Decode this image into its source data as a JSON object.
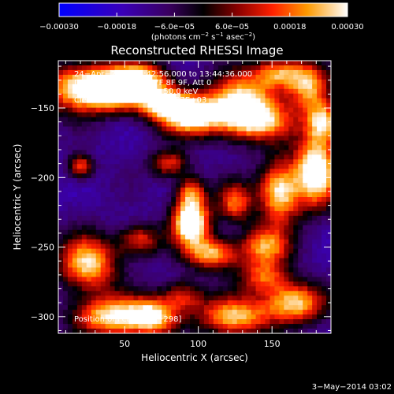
{
  "chart_data": {
    "type": "heatmap",
    "title": "Reconstructed RHESSI Image",
    "xlabel": "Heliocentric X (arcsec)",
    "ylabel": "Heliocentric Y (arcsec)",
    "xlim": [
      5,
      190
    ],
    "ylim": [
      -312,
      -116
    ],
    "x_ticks": [
      50,
      100,
      150
    ],
    "y_ticks": [
      -150,
      -200,
      -250,
      -300
    ],
    "x_tick_labels": [
      "50",
      "100",
      "150"
    ],
    "y_tick_labels": [
      "−150",
      "−200",
      "−250",
      "−300"
    ],
    "colorbar": {
      "min": -0.0003,
      "max": 0.0003,
      "colormap": "blue-purple-black-red-yellow-white",
      "ticks": [
        -0.0003,
        -0.00018,
        -6e-05,
        6e-05,
        0.00018,
        0.0003
      ],
      "tick_labels": [
        "−0.00030",
        "−0.00018",
        "−6.0e−05",
        "6.0e−05",
        "0.00018",
        "0.00030"
      ],
      "units_prefix": "(photons cm",
      "units_exp1": "−2",
      "units_mid1": " s",
      "units_exp2": "−1",
      "units_mid2": " asec",
      "units_exp3": "−2",
      "units_suffix": ")"
    },
    "annotations": {
      "time_range": "24−Apr−2012 13:42:56.000 to 13:44:36.000",
      "detectors": "Detectors: 3F 5F 6F 7F 8F 9F, Att 0",
      "energy_range": "Energy Range: 25.0 − 50.0 keV",
      "algorithm": "Clean",
      "total_counts": "Total counts: 1.57E+03",
      "position_of_peak": "Position of Peak: [61,−298]"
    },
    "peak_position": [
      61,
      -298
    ],
    "blobs": [
      {
        "x": 20,
        "y": -135,
        "sx": 18,
        "sy": 12,
        "a": 1.3
      },
      {
        "x": 45,
        "y": -138,
        "sx": 14,
        "sy": 10,
        "a": 1.2
      },
      {
        "x": 62,
        "y": -128,
        "sx": 14,
        "sy": 8,
        "a": 1.0
      },
      {
        "x": 95,
        "y": -155,
        "sx": 16,
        "sy": 10,
        "a": 1.4
      },
      {
        "x": 75,
        "y": -145,
        "sx": 12,
        "sy": 8,
        "a": 1.1
      },
      {
        "x": 130,
        "y": -145,
        "sx": 16,
        "sy": 14,
        "a": 1.2
      },
      {
        "x": 155,
        "y": -125,
        "sx": 12,
        "sy": 8,
        "a": 1.0
      },
      {
        "x": 175,
        "y": -135,
        "sx": 10,
        "sy": 12,
        "a": 1.0
      },
      {
        "x": 140,
        "y": -160,
        "sx": 18,
        "sy": 10,
        "a": 0.9
      },
      {
        "x": 180,
        "y": -195,
        "sx": 10,
        "sy": 18,
        "a": 1.5
      },
      {
        "x": 155,
        "y": -210,
        "sx": 10,
        "sy": 16,
        "a": 1.3
      },
      {
        "x": 125,
        "y": -218,
        "sx": 8,
        "sy": 10,
        "a": 0.9
      },
      {
        "x": 95,
        "y": -210,
        "sx": 7,
        "sy": 8,
        "a": 0.8
      },
      {
        "x": 80,
        "y": -190,
        "sx": 9,
        "sy": 7,
        "a": 0.8
      },
      {
        "x": 95,
        "y": -232,
        "sx": 9,
        "sy": 12,
        "a": 1.6
      },
      {
        "x": 110,
        "y": -255,
        "sx": 12,
        "sy": 8,
        "a": 1.1
      },
      {
        "x": 145,
        "y": -250,
        "sx": 12,
        "sy": 10,
        "a": 1.0
      },
      {
        "x": 145,
        "y": -272,
        "sx": 12,
        "sy": 8,
        "a": 0.8
      },
      {
        "x": 25,
        "y": -262,
        "sx": 14,
        "sy": 14,
        "a": 1.2
      },
      {
        "x": 60,
        "y": -245,
        "sx": 10,
        "sy": 8,
        "a": 0.8
      },
      {
        "x": 20,
        "y": -192,
        "sx": 6,
        "sy": 6,
        "a": 0.9
      },
      {
        "x": 40,
        "y": -300,
        "sx": 18,
        "sy": 10,
        "a": 1.2
      },
      {
        "x": 70,
        "y": -300,
        "sx": 12,
        "sy": 10,
        "a": 1.1
      },
      {
        "x": 125,
        "y": -300,
        "sx": 18,
        "sy": 10,
        "a": 1.1
      },
      {
        "x": 165,
        "y": -290,
        "sx": 14,
        "sy": 10,
        "a": 1.2
      },
      {
        "x": 90,
        "y": -285,
        "sx": 10,
        "sy": 8,
        "a": 0.7
      },
      {
        "x": 185,
        "y": -160,
        "sx": 8,
        "sy": 10,
        "a": 1.1
      }
    ]
  },
  "footer": {
    "timestamp": "3−May−2014 03:02"
  }
}
